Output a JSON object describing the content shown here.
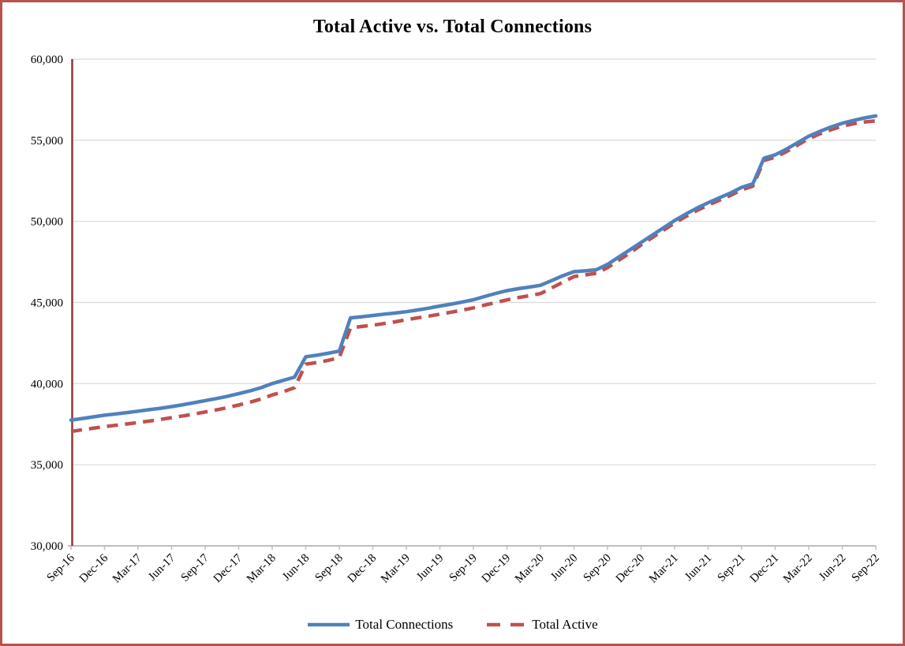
{
  "chart_data": {
    "type": "line",
    "title": "Total Active vs. Total Connections",
    "x_start": "Sep-16",
    "x_end": "Sep-22",
    "x_frequency": "monthly",
    "x_tick_labels": [
      "Sep-16",
      "Dec-16",
      "Mar-17",
      "Jun-17",
      "Sep-17",
      "Dec-17",
      "Mar-18",
      "Jun-18",
      "Sep-18",
      "Dec-18",
      "Mar-19",
      "Jun-19",
      "Sep-19",
      "Dec-19",
      "Mar-20",
      "Jun-20",
      "Sep-20",
      "Dec-20",
      "Mar-21",
      "Jun-21",
      "Sep-21",
      "Dec-21",
      "Mar-22",
      "Jun-22",
      "Sep-22"
    ],
    "y_ticks": [
      30000,
      35000,
      40000,
      45000,
      50000,
      55000,
      60000
    ],
    "y_tick_labels": [
      "30,000",
      "35,000",
      "40,000",
      "45,000",
      "50,000",
      "55,000",
      "60,000"
    ],
    "ylim": [
      30000,
      60000
    ],
    "grid": true,
    "legend_position": "bottom",
    "series": [
      {
        "name": "Total Connections",
        "style": "solid",
        "color": "#4F81BD",
        "values": [
          37750,
          37850,
          37950,
          38050,
          38130,
          38210,
          38300,
          38390,
          38480,
          38580,
          38700,
          38820,
          38950,
          39080,
          39220,
          39380,
          39550,
          39750,
          40000,
          40200,
          40400,
          41650,
          41750,
          41870,
          42000,
          44050,
          44120,
          44200,
          44280,
          44350,
          44430,
          44540,
          44650,
          44780,
          44900,
          45030,
          45170,
          45370,
          45560,
          45730,
          45850,
          45950,
          46060,
          46350,
          46650,
          46900,
          46950,
          47020,
          47350,
          47800,
          48250,
          48700,
          49150,
          49600,
          50050,
          50450,
          50820,
          51150,
          51450,
          51750,
          52100,
          52320,
          53900,
          54100,
          54450,
          54850,
          55250,
          55550,
          55820,
          56050,
          56220,
          56380,
          56500
        ]
      },
      {
        "name": "Total Active",
        "style": "dashed",
        "color": "#C0504D",
        "values": [
          37050,
          37150,
          37250,
          37350,
          37430,
          37510,
          37600,
          37690,
          37790,
          37900,
          38010,
          38120,
          38250,
          38380,
          38520,
          38680,
          38850,
          39050,
          39300,
          39500,
          39750,
          41200,
          41300,
          41430,
          41600,
          43430,
          43520,
          43600,
          43700,
          43810,
          43940,
          44050,
          44160,
          44280,
          44400,
          44530,
          44670,
          44840,
          45000,
          45160,
          45300,
          45420,
          45550,
          45900,
          46250,
          46600,
          46700,
          46800,
          47150,
          47600,
          48050,
          48550,
          49000,
          49450,
          49900,
          50300,
          50670,
          51000,
          51300,
          51600,
          51950,
          52170,
          53750,
          53950,
          54300,
          54700,
          55100,
          55400,
          55650,
          55870,
          56020,
          56130,
          56200
        ]
      }
    ]
  },
  "colors": {
    "frame_border": "#B5534F",
    "y_axis_line": "#943634",
    "x_axis_line": "#BFBFBF",
    "gridline": "#D9D9D9",
    "tick_mark": "#BFBFBF",
    "title_text": "#000000",
    "label_text": "#000000"
  }
}
